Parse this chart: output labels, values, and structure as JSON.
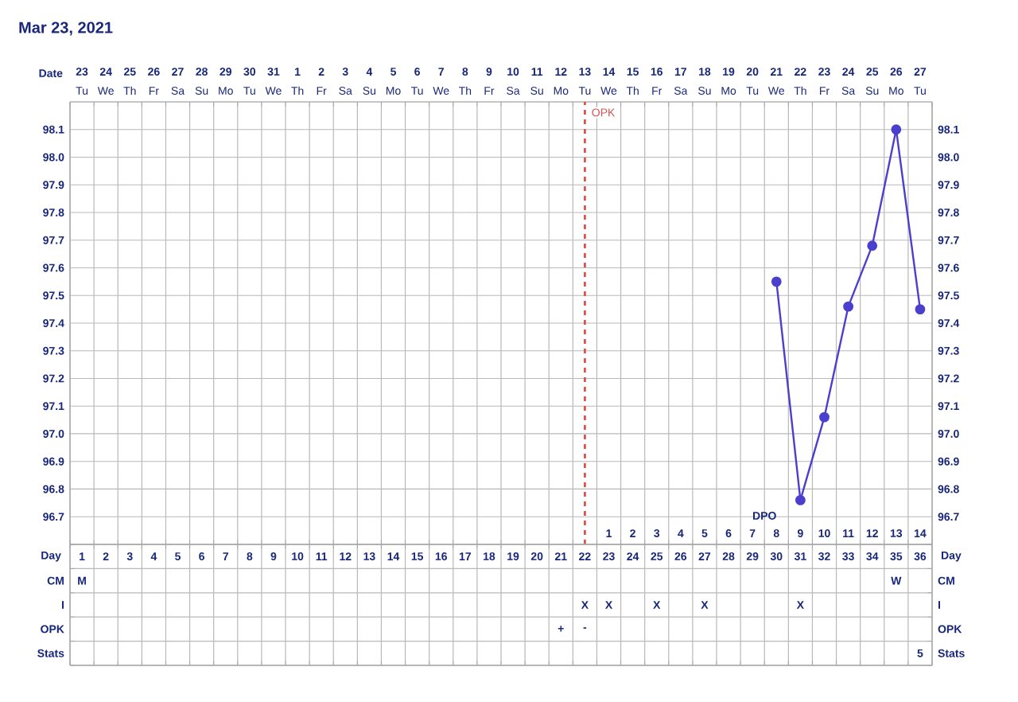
{
  "chart_data": [
    {
      "type": "line",
      "title": "Mar 23, 2021",
      "categories": [
        "Tu",
        "We",
        "Th",
        "Fr",
        "Sa",
        "Su",
        "Mo",
        "Tu",
        "We",
        "Th",
        "Fr",
        "Sa",
        "Su",
        "Mo",
        "Tu",
        "We",
        "Th",
        "Fr",
        "Sa",
        "Su",
        "Mo",
        "Tu",
        "We",
        "Th",
        "Fr",
        "Sa",
        "Su",
        "Mo",
        "Tu",
        "We",
        "Th",
        "Fr",
        "Sa",
        "Su",
        "Mo",
        "Tu"
      ],
      "x2label": "Date",
      "x2lim": [
        "2021-03-22T12:00",
        "2021-04-27T12:00"
      ],
      "x2ticks": [
        {
          "value": "2021-03-23",
          "label": "23"
        },
        {
          "value": "2021-03-24",
          "label": "24"
        },
        {
          "value": "2021-03-25",
          "label": "25"
        },
        {
          "value": "2021-03-26",
          "label": "26"
        },
        {
          "value": "2021-03-27",
          "label": "27"
        },
        {
          "value": "2021-03-28",
          "label": "28"
        },
        {
          "value": "2021-03-29",
          "label": "29"
        },
        {
          "value": "2021-03-30",
          "label": "30"
        },
        {
          "value": "2021-03-31",
          "label": "31"
        },
        {
          "value": "2021-04-01",
          "label": "1"
        },
        {
          "value": "2021-04-02",
          "label": "2"
        },
        {
          "value": "2021-04-03",
          "label": "3"
        },
        {
          "value": "2021-04-04",
          "label": "4"
        },
        {
          "value": "2021-04-05",
          "label": "5"
        },
        {
          "value": "2021-04-06",
          "label": "6"
        },
        {
          "value": "2021-04-07",
          "label": "7"
        },
        {
          "value": "2021-04-08",
          "label": "8"
        },
        {
          "value": "2021-04-09",
          "label": "9"
        },
        {
          "value": "2021-04-10",
          "label": "10"
        },
        {
          "value": "2021-04-11",
          "label": "11"
        },
        {
          "value": "2021-04-12",
          "label": "12"
        },
        {
          "value": "2021-04-13",
          "label": "13"
        },
        {
          "value": "2021-04-14",
          "label": "14"
        },
        {
          "value": "2021-04-15",
          "label": "15"
        },
        {
          "value": "2021-04-16",
          "label": "16"
        },
        {
          "value": "2021-04-17",
          "label": "17"
        },
        {
          "value": "2021-04-18",
          "label": "18"
        },
        {
          "value": "2021-04-19",
          "label": "19"
        },
        {
          "value": "2021-04-20",
          "label": "20"
        },
        {
          "value": "2021-04-21",
          "label": "21"
        },
        {
          "value": "2021-04-22",
          "label": "22"
        },
        {
          "value": "2021-04-23",
          "label": "23"
        },
        {
          "value": "2021-04-24",
          "label": "24"
        },
        {
          "value": "2021-04-25",
          "label": "25"
        },
        {
          "value": "2021-04-26",
          "label": "26"
        },
        {
          "value": "2021-04-27",
          "label": "27"
        }
      ],
      "ylim": [
        96.6,
        98.2
      ],
      "yticks": [
        {
          "value": 96.7,
          "label": "96.7"
        },
        {
          "value": 96.8,
          "label": "96.8"
        },
        {
          "value": 96.9,
          "label": "96.9"
        },
        {
          "value": 97.0,
          "label": "97.0"
        },
        {
          "value": 97.1,
          "label": "97.1"
        },
        {
          "value": 97.2,
          "label": "97.2"
        },
        {
          "value": 97.3,
          "label": "97.3"
        },
        {
          "value": 97.4,
          "label": "97.4"
        },
        {
          "value": 97.5,
          "label": "97.5"
        },
        {
          "value": 97.6,
          "label": "97.6"
        },
        {
          "value": 97.7,
          "label": "97.7"
        },
        {
          "value": 97.8,
          "label": "97.8"
        },
        {
          "value": 97.9,
          "label": "97.9"
        },
        {
          "value": 98.0,
          "label": "98.0"
        },
        {
          "value": 98.1,
          "label": "98.1"
        }
      ],
      "y2lim": [
        96.6,
        98.2
      ],
      "y2ticks": [
        {
          "value": 96.7,
          "label": "96.7"
        },
        {
          "value": 96.8,
          "label": "96.8"
        },
        {
          "value": 96.9,
          "label": "96.9"
        },
        {
          "value": 97.0,
          "label": "97.0"
        },
        {
          "value": 97.1,
          "label": "97.1"
        },
        {
          "value": 97.2,
          "label": "97.2"
        },
        {
          "value": 97.3,
          "label": "97.3"
        },
        {
          "value": 97.4,
          "label": "97.4"
        },
        {
          "value": 97.5,
          "label": "97.5"
        },
        {
          "value": 97.6,
          "label": "97.6"
        },
        {
          "value": 97.7,
          "label": "97.7"
        },
        {
          "value": 97.8,
          "label": "97.8"
        },
        {
          "value": 97.9,
          "label": "97.9"
        },
        {
          "value": 98.0,
          "label": "98.0"
        },
        {
          "value": 98.1,
          "label": "98.1"
        }
      ],
      "series": [
        {
          "color": "#4b3fce",
          "values": [
            null,
            null,
            null,
            null,
            null,
            null,
            null,
            null,
            null,
            null,
            null,
            null,
            null,
            null,
            null,
            null,
            null,
            null,
            null,
            null,
            null,
            null,
            null,
            null,
            null,
            null,
            null,
            null,
            null,
            97.55,
            96.76,
            97.06,
            97.46,
            97.68,
            98.1,
            97.45
          ]
        }
      ],
      "marker": "circle",
      "grid": true,
      "ref_lines": [
        {
          "axis": "x2",
          "value": "2021-04-13",
          "label": "OPK",
          "color": "#d9534f",
          "line_style": "dashed"
        }
      ]
    },
    {
      "type": "heatmap",
      "xlabel": "Day",
      "categories": [
        "1",
        "2",
        "3",
        "4",
        "5",
        "6",
        "7",
        "8",
        "9",
        "10",
        "11",
        "12",
        "13",
        "14",
        "15",
        "16",
        "17",
        "18",
        "19",
        "20",
        "21",
        "22",
        "23",
        "24",
        "25",
        "26",
        "27",
        "28",
        "29",
        "30",
        "31",
        "32",
        "33",
        "34",
        "35",
        "36"
      ],
      "x2label": "DPO",
      "x2lim": [
        -21.5,
        14.5
      ],
      "x2ticks": [
        1,
        2,
        3,
        4,
        5,
        6,
        7,
        8,
        9,
        10,
        11,
        12,
        13,
        14
      ],
      "y_categories": [
        "CM",
        "I",
        "OPK",
        "Stats"
      ],
      "y2_categories": [
        "CM",
        "I",
        "OPK",
        "Stats"
      ],
      "cells": [
        [
          null,
          null,
          null,
          null,
          null,
          null,
          null,
          null,
          null,
          null,
          null,
          null,
          null,
          null,
          null,
          null,
          null,
          null,
          null,
          null,
          null,
          null,
          null,
          null,
          null,
          null,
          null,
          null,
          null,
          null,
          null,
          null,
          null,
          null,
          null,
          null
        ],
        [
          null,
          null,
          null,
          null,
          null,
          null,
          null,
          null,
          null,
          null,
          null,
          null,
          null,
          null,
          null,
          null,
          null,
          null,
          null,
          null,
          null,
          null,
          null,
          null,
          null,
          null,
          null,
          null,
          null,
          null,
          null,
          null,
          null,
          null,
          null,
          null
        ],
        [
          null,
          null,
          null,
          null,
          null,
          null,
          null,
          null,
          null,
          null,
          null,
          null,
          null,
          null,
          null,
          null,
          null,
          null,
          null,
          null,
          null,
          null,
          null,
          null,
          null,
          null,
          null,
          null,
          null,
          null,
          null,
          null,
          null,
          null,
          null,
          null
        ],
        [
          null,
          null,
          null,
          null,
          null,
          null,
          null,
          null,
          null,
          null,
          null,
          null,
          null,
          null,
          null,
          null,
          null,
          null,
          null,
          null,
          null,
          null,
          null,
          null,
          null,
          null,
          null,
          null,
          null,
          null,
          null,
          null,
          null,
          null,
          null,
          null
        ]
      ],
      "cell_labels": [
        [
          "M",
          null,
          null,
          null,
          null,
          null,
          null,
          null,
          null,
          null,
          null,
          null,
          null,
          null,
          null,
          null,
          null,
          null,
          null,
          null,
          null,
          null,
          null,
          null,
          null,
          null,
          null,
          null,
          null,
          null,
          null,
          null,
          null,
          null,
          "W",
          null
        ],
        [
          null,
          null,
          null,
          null,
          null,
          null,
          null,
          null,
          null,
          null,
          null,
          null,
          null,
          null,
          null,
          null,
          null,
          null,
          null,
          null,
          null,
          "X",
          "X",
          null,
          "X",
          null,
          "X",
          null,
          null,
          null,
          "X",
          null,
          null,
          null,
          null,
          null
        ],
        [
          null,
          null,
          null,
          null,
          null,
          null,
          null,
          null,
          null,
          null,
          null,
          null,
          null,
          null,
          null,
          null,
          null,
          null,
          null,
          null,
          "+",
          "-",
          null,
          null,
          null,
          null,
          null,
          null,
          null,
          null,
          null,
          null,
          null,
          null,
          null,
          null
        ],
        [
          null,
          null,
          null,
          null,
          null,
          null,
          null,
          null,
          null,
          null,
          null,
          null,
          null,
          null,
          null,
          null,
          null,
          null,
          null,
          null,
          null,
          null,
          null,
          null,
          null,
          null,
          null,
          null,
          null,
          null,
          null,
          null,
          null,
          null,
          null,
          "5"
        ]
      ],
      "grid": true
    }
  ]
}
